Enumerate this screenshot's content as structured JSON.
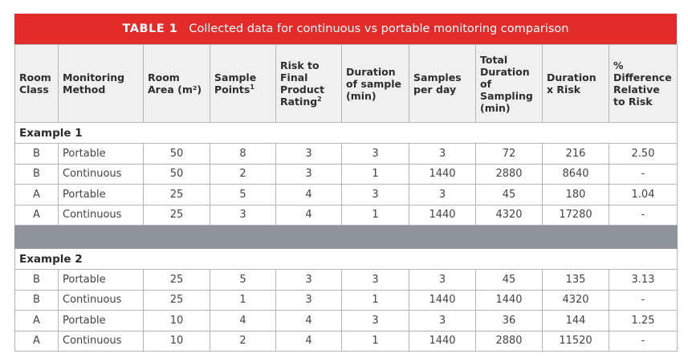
{
  "title": {
    "number": "TABLE 1",
    "text": "Collected data for continuous vs portable monitoring comparison"
  },
  "colors": {
    "title_bar": "#e32b2b",
    "divider_row": "#8e9499",
    "header_bg": "#f0f0f0"
  },
  "headers": {
    "room_class": "Room Class",
    "monitoring_method": "Monitoring Method",
    "room_area": "Room Area (m²)",
    "sample_points": "Sample Points",
    "sample_points_sup": "1",
    "risk_rating": "Risk to Final Product Rating",
    "risk_rating_sup": "2",
    "duration_sample": "Duration of sample (min)",
    "samples_per_day": "Samples per day",
    "total_duration": "Total Duration of Sampling (min)",
    "duration_x_risk": "Duration x Risk",
    "pct_difference": "% Difference Relative to Risk"
  },
  "example1": {
    "label": "Example 1",
    "rows": [
      {
        "room_class": "B",
        "method": "Portable",
        "area": "50",
        "points": "8",
        "risk": "3",
        "duration": "3",
        "per_day": "3",
        "total": "72",
        "dxr": "216",
        "pct": "2.50"
      },
      {
        "room_class": "B",
        "method": "Continuous",
        "area": "50",
        "points": "2",
        "risk": "3",
        "duration": "1",
        "per_day": "1440",
        "total": "2880",
        "dxr": "8640",
        "pct": "-"
      },
      {
        "room_class": "A",
        "method": "Portable",
        "area": "25",
        "points": "5",
        "risk": "4",
        "duration": "3",
        "per_day": "3",
        "total": "45",
        "dxr": "180",
        "pct": "1.04"
      },
      {
        "room_class": "A",
        "method": "Continuous",
        "area": "25",
        "points": "3",
        "risk": "4",
        "duration": "1",
        "per_day": "1440",
        "total": "4320",
        "dxr": "17280",
        "pct": "-"
      }
    ]
  },
  "example2": {
    "label": "Example 2",
    "rows": [
      {
        "room_class": "B",
        "method": "Portable",
        "area": "25",
        "points": "5",
        "risk": "3",
        "duration": "3",
        "per_day": "3",
        "total": "45",
        "dxr": "135",
        "pct": "3.13"
      },
      {
        "room_class": "B",
        "method": "Continuous",
        "area": "25",
        "points": "1",
        "risk": "3",
        "duration": "1",
        "per_day": "1440",
        "total": "1440",
        "dxr": "4320",
        "pct": "-"
      },
      {
        "room_class": "A",
        "method": "Portable",
        "area": "10",
        "points": "4",
        "risk": "4",
        "duration": "3",
        "per_day": "3",
        "total": "36",
        "dxr": "144",
        "pct": "1.25"
      },
      {
        "room_class": "A",
        "method": "Continuous",
        "area": "10",
        "points": "2",
        "risk": "4",
        "duration": "1",
        "per_day": "1440",
        "total": "2880",
        "dxr": "11520",
        "pct": "-"
      }
    ]
  }
}
